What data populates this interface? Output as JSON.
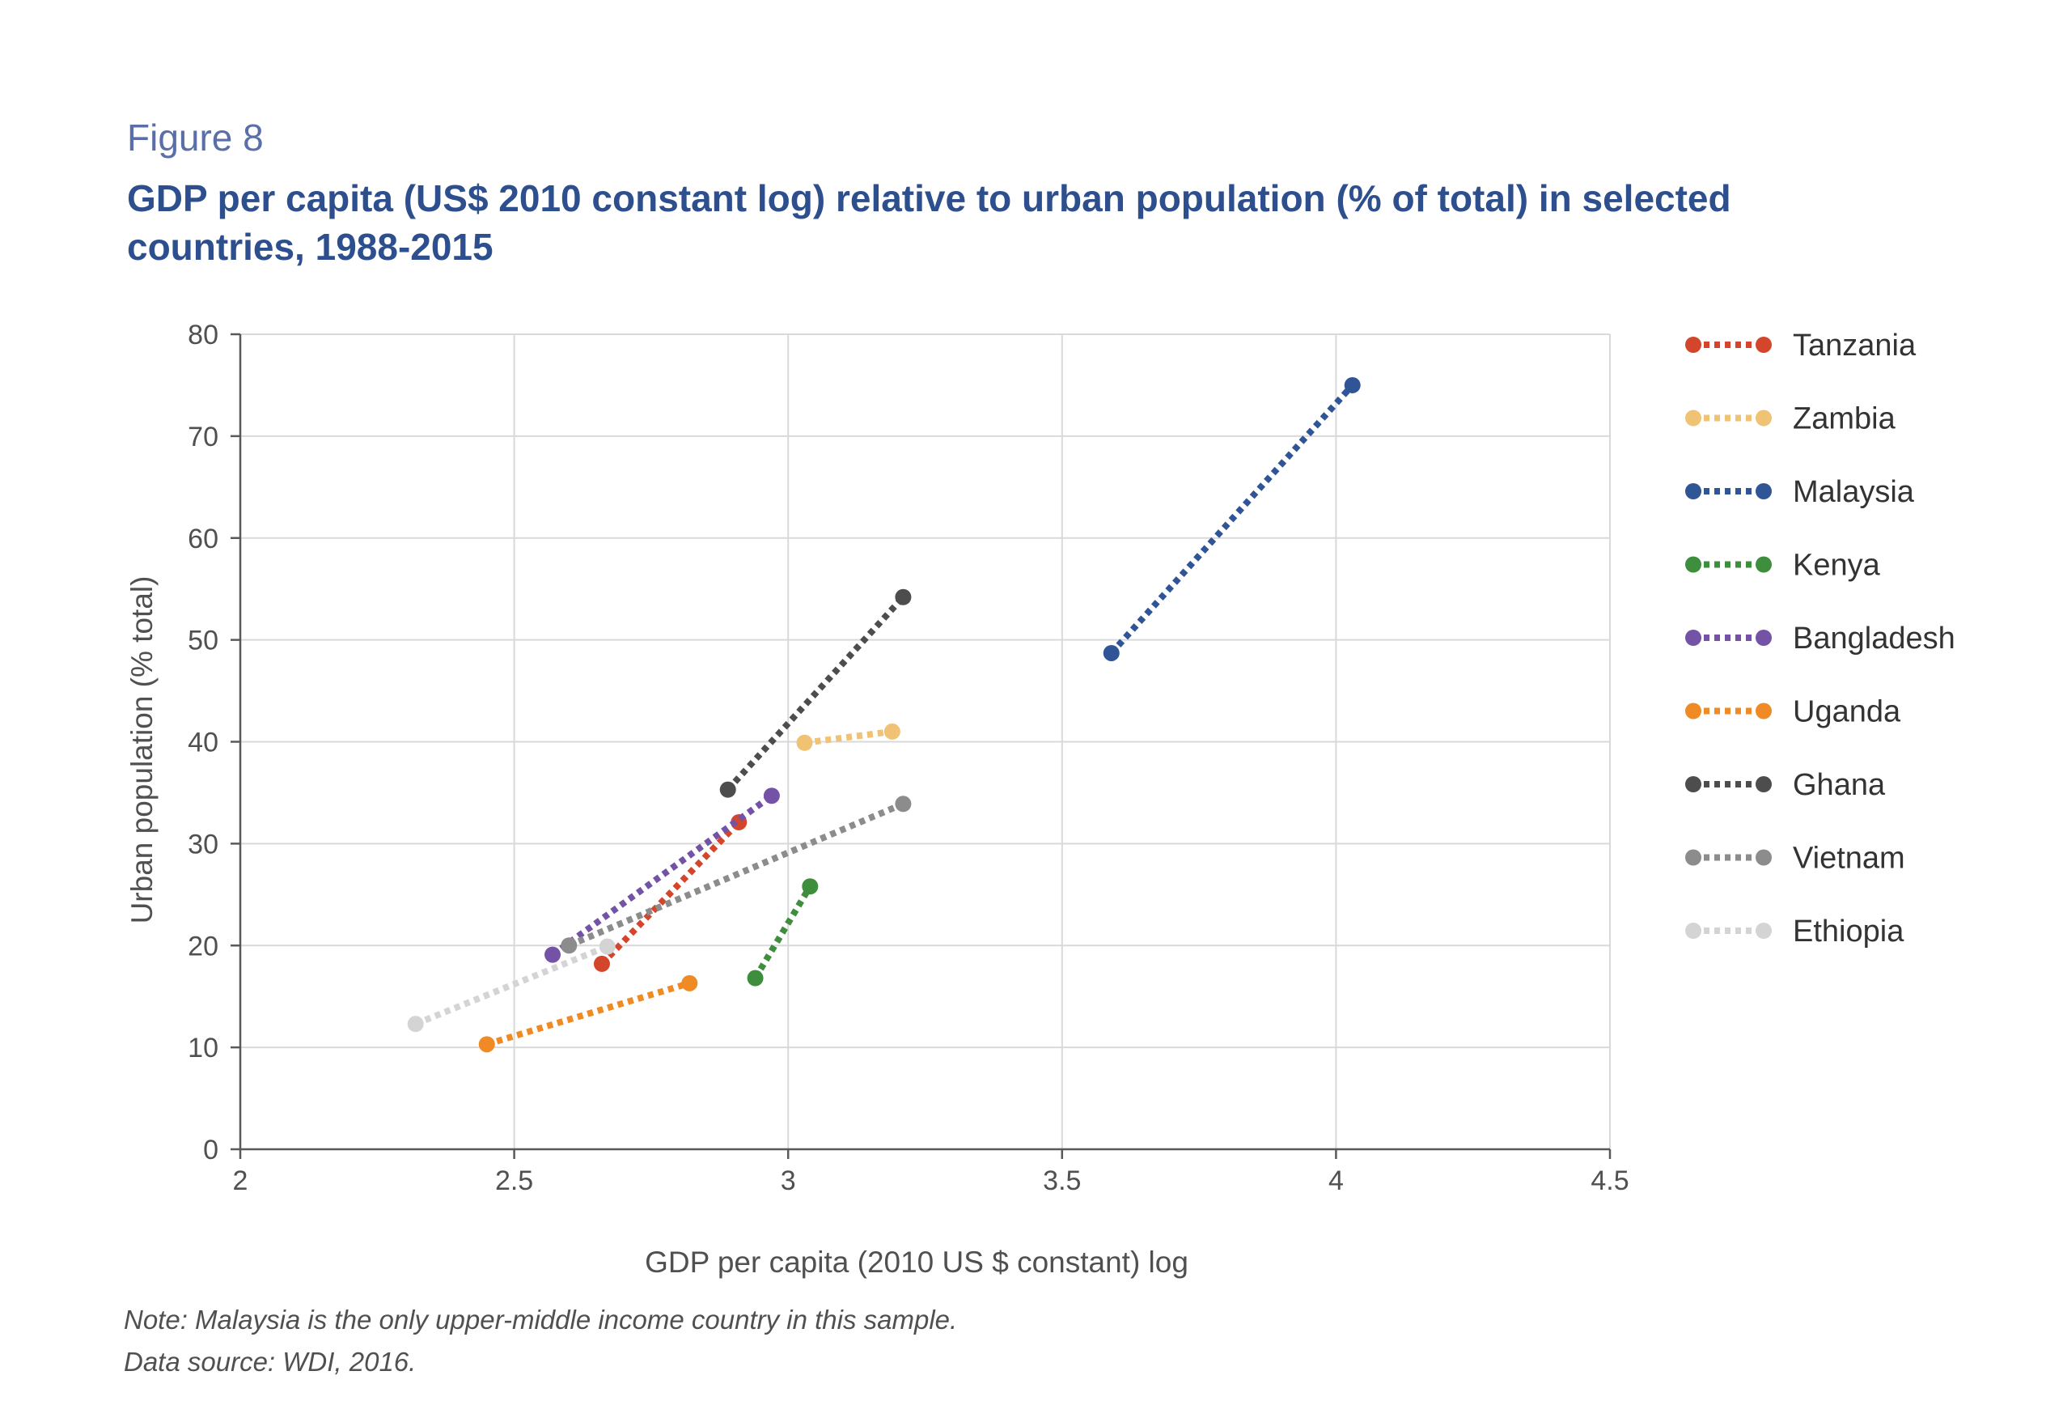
{
  "figure_label": "Figure 8",
  "notes": {
    "note": "Note: Malaysia is the only upper-middle income country in this sample.",
    "source": "Data source: WDI, 2016."
  },
  "chart_data": {
    "type": "scatter",
    "title": "GDP per capita (US$ 2010 constant log) relative to urban population (% of total) in selected countries, 1988-2015",
    "xlabel": "GDP per capita (2010 US $ constant) log",
    "ylabel": "Urban population (% total)",
    "xlim": [
      2,
      4.5
    ],
    "ylim": [
      0,
      80
    ],
    "x_ticks": [
      2,
      2.5,
      3,
      3.5,
      4,
      4.5
    ],
    "x_tick_labels": [
      "2",
      "2.5",
      "3",
      "3.5",
      "4",
      "4.5"
    ],
    "y_ticks": [
      0,
      10,
      20,
      30,
      40,
      50,
      60,
      70,
      80
    ],
    "y_tick_labels": [
      "0",
      "10",
      "20",
      "30",
      "40",
      "50",
      "60",
      "70",
      "80"
    ],
    "grid": true,
    "legend_position": "right",
    "series": [
      {
        "name": "Tanzania",
        "color": "#d4462b",
        "points": [
          [
            2.66,
            18.2
          ],
          [
            2.91,
            32.1
          ]
        ]
      },
      {
        "name": "Zambia",
        "color": "#f0c274",
        "points": [
          [
            3.03,
            39.9
          ],
          [
            3.19,
            41.0
          ]
        ]
      },
      {
        "name": "Malaysia",
        "color": "#2f5597",
        "points": [
          [
            3.59,
            48.7
          ],
          [
            4.03,
            75.0
          ]
        ]
      },
      {
        "name": "Kenya",
        "color": "#3e8e3e",
        "points": [
          [
            2.94,
            16.8
          ],
          [
            3.04,
            25.8
          ]
        ]
      },
      {
        "name": "Bangladesh",
        "color": "#7453a6",
        "points": [
          [
            2.57,
            19.1
          ],
          [
            2.97,
            34.7
          ]
        ]
      },
      {
        "name": "Uganda",
        "color": "#f08a24",
        "points": [
          [
            2.45,
            10.3
          ],
          [
            2.82,
            16.3
          ]
        ]
      },
      {
        "name": "Ghana",
        "color": "#4d4d4d",
        "points": [
          [
            2.89,
            35.3
          ],
          [
            3.21,
            54.2
          ]
        ]
      },
      {
        "name": "Vietnam",
        "color": "#8c8c8c",
        "points": [
          [
            2.6,
            20.0
          ],
          [
            3.21,
            33.9
          ]
        ]
      },
      {
        "name": "Ethiopia",
        "color": "#d4d4d4",
        "points": [
          [
            2.32,
            12.3
          ],
          [
            2.67,
            19.9
          ]
        ]
      }
    ]
  }
}
